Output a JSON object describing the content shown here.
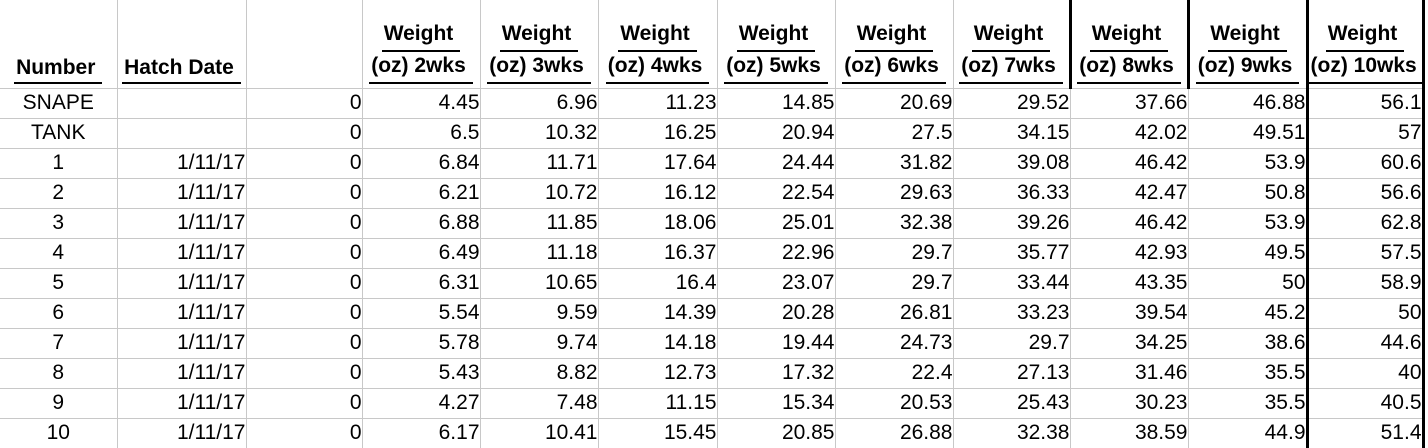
{
  "colors": {
    "background": "#ffffff",
    "text": "#000000",
    "gridline": "#c8c8c8",
    "heavy_border": "#000000"
  },
  "table": {
    "headers": {
      "number": "Number",
      "hatch_date": "Hatch Date",
      "blank": "",
      "weights": [
        {
          "line1": "Weight",
          "line2": "(oz) 2wks"
        },
        {
          "line1": "Weight",
          "line2": "(oz) 3wks"
        },
        {
          "line1": "Weight",
          "line2": "(oz) 4wks"
        },
        {
          "line1": "Weight",
          "line2": "(oz) 5wks"
        },
        {
          "line1": "Weight",
          "line2": "(oz) 6wks"
        },
        {
          "line1": "Weight",
          "line2": "(oz) 7wks"
        },
        {
          "line1": "Weight",
          "line2": "(oz) 8wks"
        },
        {
          "line1": "Weight",
          "line2": "(oz) 9wks"
        },
        {
          "line1": "Weight",
          "line2": "(oz) 10wks"
        }
      ]
    },
    "rows": [
      {
        "number": "SNAPE",
        "hatch_date": "",
        "day0": "0",
        "weights": [
          "4.45",
          "6.96",
          "11.23",
          "14.85",
          "20.69",
          "29.52",
          "37.66",
          "46.88",
          "56.1"
        ]
      },
      {
        "number": "TANK",
        "hatch_date": "",
        "day0": "0",
        "weights": [
          "6.5",
          "10.32",
          "16.25",
          "20.94",
          "27.5",
          "34.15",
          "42.02",
          "49.51",
          "57"
        ]
      },
      {
        "number": "1",
        "hatch_date": "1/11/17",
        "day0": "0",
        "weights": [
          "6.84",
          "11.71",
          "17.64",
          "24.44",
          "31.82",
          "39.08",
          "46.42",
          "53.9",
          "60.6"
        ]
      },
      {
        "number": "2",
        "hatch_date": "1/11/17",
        "day0": "0",
        "weights": [
          "6.21",
          "10.72",
          "16.12",
          "22.54",
          "29.63",
          "36.33",
          "42.47",
          "50.8",
          "56.6"
        ]
      },
      {
        "number": "3",
        "hatch_date": "1/11/17",
        "day0": "0",
        "weights": [
          "6.88",
          "11.85",
          "18.06",
          "25.01",
          "32.38",
          "39.26",
          "46.42",
          "53.9",
          "62.8"
        ]
      },
      {
        "number": "4",
        "hatch_date": "1/11/17",
        "day0": "0",
        "weights": [
          "6.49",
          "11.18",
          "16.37",
          "22.96",
          "29.7",
          "35.77",
          "42.93",
          "49.5",
          "57.5"
        ]
      },
      {
        "number": "5",
        "hatch_date": "1/11/17",
        "day0": "0",
        "weights": [
          "6.31",
          "10.65",
          "16.4",
          "23.07",
          "29.7",
          "33.44",
          "43.35",
          "50",
          "58.9"
        ]
      },
      {
        "number": "6",
        "hatch_date": "1/11/17",
        "day0": "0",
        "weights": [
          "5.54",
          "9.59",
          "14.39",
          "20.28",
          "26.81",
          "33.23",
          "39.54",
          "45.2",
          "50"
        ]
      },
      {
        "number": "7",
        "hatch_date": "1/11/17",
        "day0": "0",
        "weights": [
          "5.78",
          "9.74",
          "14.18",
          "19.44",
          "24.73",
          "29.7",
          "34.25",
          "38.6",
          "44.6"
        ]
      },
      {
        "number": "8",
        "hatch_date": "1/11/17",
        "day0": "0",
        "weights": [
          "5.43",
          "8.82",
          "12.73",
          "17.32",
          "22.4",
          "27.13",
          "31.46",
          "35.5",
          "40"
        ]
      },
      {
        "number": "9",
        "hatch_date": "1/11/17",
        "day0": "0",
        "weights": [
          "4.27",
          "7.48",
          "11.15",
          "15.34",
          "20.53",
          "25.43",
          "30.23",
          "35.5",
          "40.5"
        ]
      },
      {
        "number": "10",
        "hatch_date": "1/11/17",
        "day0": "0",
        "weights": [
          "6.17",
          "10.41",
          "15.45",
          "20.85",
          "26.88",
          "32.38",
          "38.59",
          "44.9",
          "51.4"
        ]
      }
    ]
  }
}
